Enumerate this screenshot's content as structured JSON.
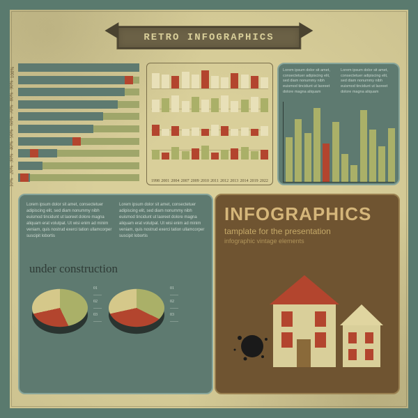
{
  "ribbon_title": "RETRO  INFOGRAPHICS",
  "colors": {
    "bg": "#d9cf9a",
    "frame": "#5a7a6e",
    "teal": "#5e7a70",
    "teal_border": "#87a59a",
    "brown": "#6f5431",
    "brown_border": "#9a8050",
    "olive": "#aab068",
    "olive_dark": "#8a9050",
    "red": "#b3452e",
    "cream": "#e8e0b8",
    "dark": "#2e3a35"
  },
  "hbar": {
    "y_labels": [
      "100%",
      "90%",
      "80%",
      "70%",
      "60%",
      "50%",
      "40%",
      "30%",
      "20%",
      "10%"
    ],
    "rows": [
      {
        "segs": [
          [
            "#5e7a70",
            0,
            100
          ]
        ],
        "redpos": null
      },
      {
        "segs": [
          [
            "#5e7a70",
            0,
            95
          ]
        ],
        "redpos": 88
      },
      {
        "segs": [
          [
            "#5e7a70",
            0,
            88
          ]
        ],
        "redpos": null
      },
      {
        "segs": [
          [
            "#5e7a70",
            0,
            82
          ]
        ],
        "redpos": null
      },
      {
        "segs": [
          [
            "#5e7a70",
            0,
            70
          ]
        ],
        "redpos": null
      },
      {
        "segs": [
          [
            "#5e7a70",
            0,
            62
          ]
        ],
        "redpos": null
      },
      {
        "segs": [
          [
            "#5e7a70",
            0,
            50
          ]
        ],
        "redpos": 45
      },
      {
        "segs": [
          [
            "#5e7a70",
            0,
            32
          ]
        ],
        "redpos": 10
      },
      {
        "segs": [
          [
            "#5e7a70",
            0,
            20
          ]
        ],
        "redpos": null
      },
      {
        "segs": [
          [
            "#5e7a70",
            0,
            10
          ]
        ],
        "redpos": 2
      }
    ],
    "bar_color": "#5e7a70",
    "bg_color": "#9fa66a",
    "red_color": "#b3452e"
  },
  "mini": {
    "x_labels": [
      "1998",
      "2001",
      "2004",
      "2007",
      "2009",
      "2010",
      "2011",
      "2012",
      "2013",
      "2014",
      "2019",
      "2022"
    ],
    "rows": [
      {
        "base_color": "#e8e0b8",
        "accent": "#b3452e",
        "heights": [
          22,
          20,
          18,
          24,
          20,
          26,
          18,
          16,
          22,
          20,
          18,
          16
        ],
        "accent_idx": [
          2,
          5,
          8,
          10
        ]
      },
      {
        "base_color": "#e8e0b8",
        "accent": "#aab068",
        "heights": [
          18,
          20,
          24,
          16,
          22,
          18,
          20,
          24,
          16,
          18,
          22,
          20
        ],
        "accent_idx": [
          1,
          4,
          6,
          9,
          11
        ]
      },
      {
        "base_color": "#e8e0b8",
        "accent": "#b3452e",
        "heights": [
          16,
          10,
          14,
          10,
          12,
          10,
          16,
          14,
          10,
          12,
          10,
          14
        ],
        "accent_idx": [
          0,
          2,
          5,
          7,
          10
        ]
      },
      {
        "base_color": "#aab068",
        "accent": "#b3452e",
        "heights": [
          14,
          10,
          18,
          12,
          16,
          20,
          10,
          14,
          16,
          18,
          12,
          14
        ],
        "accent_idx": [
          1,
          4,
          6,
          8,
          11
        ]
      }
    ]
  },
  "column_panel": {
    "lorem_left": "Lorem ipsum dolor sit amet, consectetuer adipiscing elit, sed diam nonummy nibh euismod tincidunt ut laoreet dolore magna aliquam",
    "lorem_right": "Lorem ipsum dolor sit amet, consectetuer adipiscing elit, sed diam nonummy nibh euismod tincidunt ut laoreet dolore magna aliquam",
    "values": [
      58,
      82,
      64,
      96,
      50,
      78,
      36,
      22,
      94,
      68,
      46,
      70
    ],
    "red_idx": 4,
    "col_color": "#aab068",
    "red_color": "#b3452e"
  },
  "teal_panel": {
    "lorem_left": "Lorem ipsum dolor sit amet, consectetuer adipiscing elit, sed diam nonummy nibh euismod tincidunt ut laoreet dolore magna aliquam erat volutpat. Ut wisi enim ad minim veniam, quis nostrud exerci tation ullamcorper suscipit lobortis",
    "lorem_right": "Lorem ipsum dolor sit amet, consectetuer adipiscing elit, sed diam nonummy nibh euismod tincidunt ut laoreet dolore magna aliquam erat volutpat. Ut wisi enim ad minim veniam, quis nostrud exerci tation ullamcorper suscipit lobortis",
    "heading": "under construction",
    "legend": [
      "01",
      "02",
      "03"
    ],
    "pies": [
      {
        "slices": [
          {
            "color": "#aab068",
            "pct": 45
          },
          {
            "color": "#b3452e",
            "pct": 25
          },
          {
            "color": "#d5c88a",
            "pct": 30
          }
        ]
      },
      {
        "slices": [
          {
            "color": "#aab068",
            "pct": 35
          },
          {
            "color": "#b3452e",
            "pct": 35
          },
          {
            "color": "#d5c88a",
            "pct": 30
          }
        ]
      }
    ]
  },
  "brown_panel": {
    "title": "INFOGRAPHICS",
    "subtitle": "tamplate for the presentation",
    "subsub": "infographic vintage elements"
  }
}
